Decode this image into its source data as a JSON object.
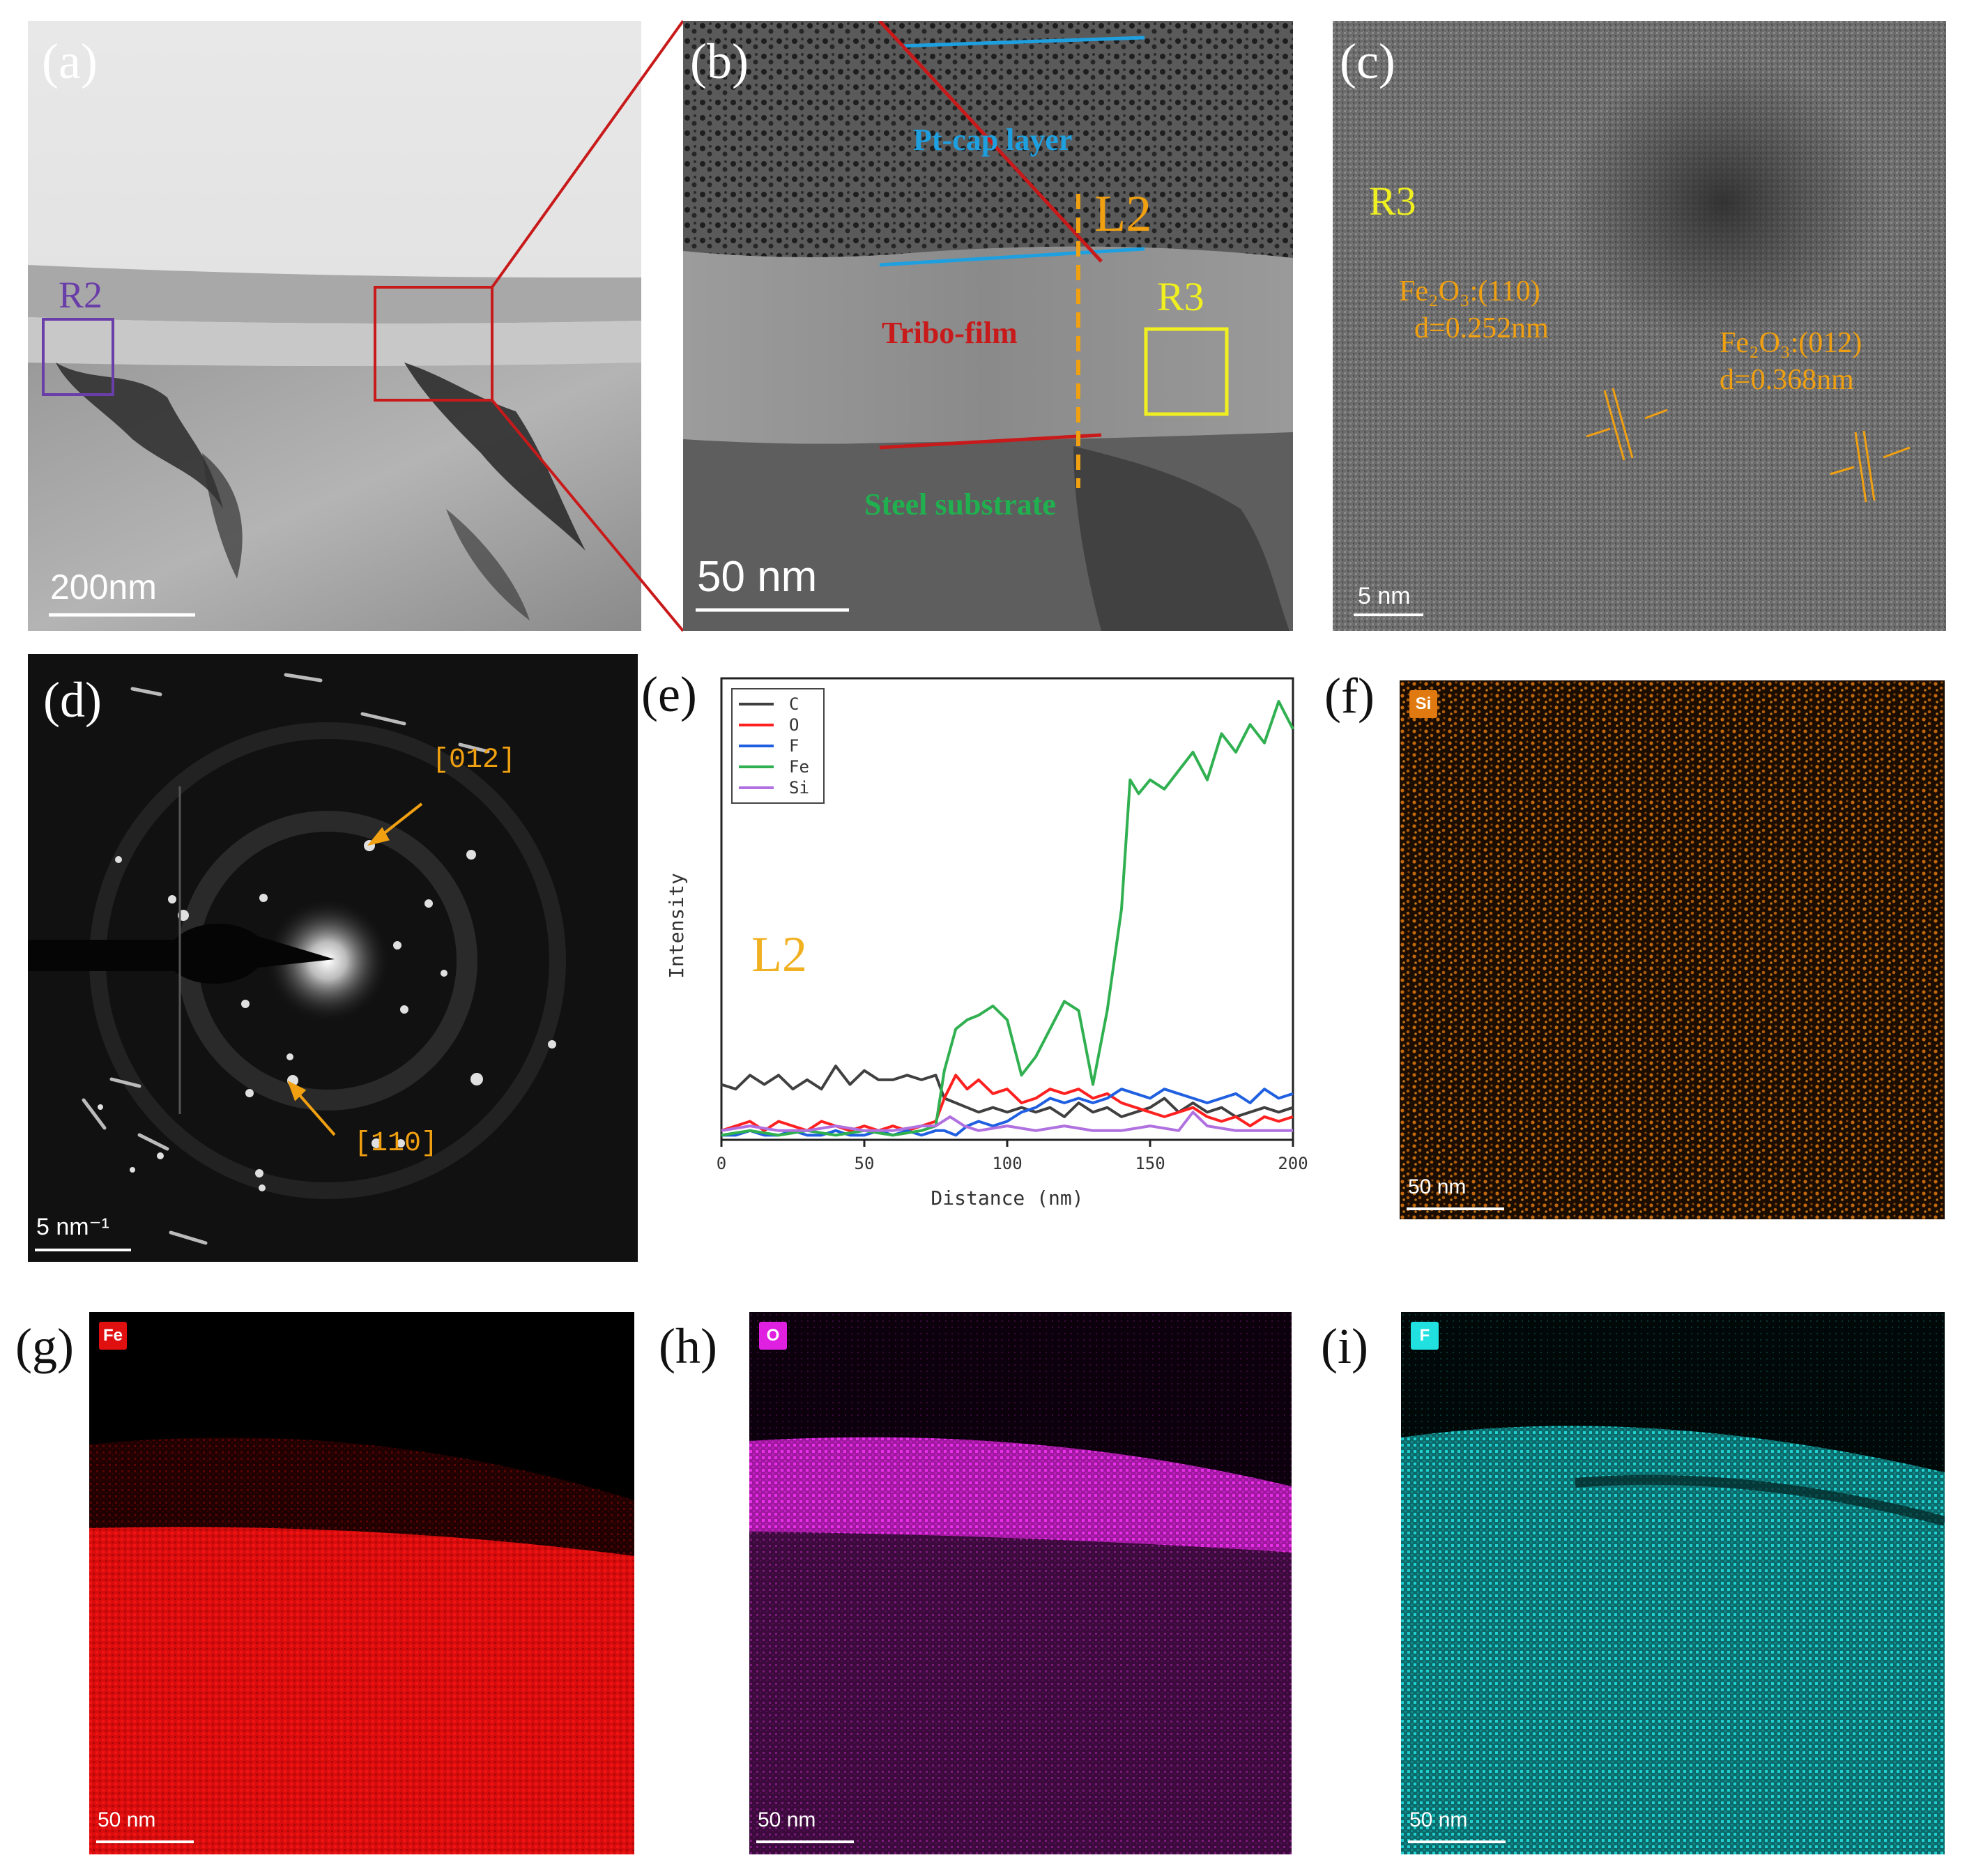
{
  "panels": {
    "a": {
      "label": "(a)",
      "region": "R2",
      "scalebar": "200nm"
    },
    "b": {
      "label": "(b)",
      "cap_layer": "Pt-cap layer",
      "film": "Tribo-film",
      "substrate": "Steel substrate",
      "line_label": "L2",
      "region": "R3",
      "scalebar": "50 nm"
    },
    "c": {
      "label": "(c)",
      "region": "R3",
      "phase1_formula": "Fe₂O₃",
      "phase1_plane": ":(110)",
      "phase1_d": "d=0.252nm",
      "phase2_formula": "Fe₂O₃",
      "phase2_plane": ":(012)",
      "phase2_d": "d=0.368nm",
      "scalebar": "5 nm"
    },
    "d": {
      "label": "(d)",
      "spot1": "[012]",
      "spot2": "[110]",
      "scalebar": "5 nm⁻¹"
    },
    "e": {
      "label": "(e)"
    },
    "f": {
      "label": "(f)",
      "element": "Si",
      "scalebar": "50 nm",
      "color": "#e07a10"
    },
    "g": {
      "label": "(g)",
      "element": "Fe",
      "scalebar": "50 nm",
      "color": "#ff1a1a"
    },
    "h": {
      "label": "(h)",
      "element": "O",
      "scalebar": "50 nm",
      "color": "#e020e0"
    },
    "i": {
      "label": "(i)",
      "element": "F",
      "scalebar": "50 nm",
      "color": "#20e0e0"
    }
  },
  "chart_data": {
    "type": "line",
    "annotation": "L2",
    "xlabel": "Distance (nm)",
    "ylabel": "Intensity",
    "xlim": [
      0,
      200
    ],
    "ylim": [
      0,
      1
    ],
    "xticks": [
      0,
      50,
      100,
      150,
      200
    ],
    "legend_position": "top-left",
    "series": [
      {
        "name": "C",
        "color": "#404040",
        "x": [
          0,
          5,
          10,
          15,
          20,
          25,
          30,
          35,
          40,
          45,
          50,
          55,
          60,
          65,
          70,
          75,
          78,
          82,
          86,
          90,
          95,
          100,
          105,
          110,
          115,
          120,
          125,
          130,
          135,
          140,
          145,
          150,
          155,
          160,
          165,
          170,
          175,
          180,
          185,
          190,
          195,
          200
        ],
        "y": [
          0.12,
          0.11,
          0.14,
          0.12,
          0.14,
          0.11,
          0.13,
          0.11,
          0.16,
          0.12,
          0.15,
          0.13,
          0.13,
          0.14,
          0.13,
          0.14,
          0.09,
          0.08,
          0.07,
          0.06,
          0.07,
          0.06,
          0.07,
          0.06,
          0.07,
          0.05,
          0.08,
          0.06,
          0.07,
          0.05,
          0.06,
          0.07,
          0.09,
          0.06,
          0.08,
          0.06,
          0.07,
          0.05,
          0.06,
          0.07,
          0.06,
          0.07
        ]
      },
      {
        "name": "O",
        "color": "#ff2020",
        "x": [
          0,
          5,
          10,
          15,
          20,
          25,
          30,
          35,
          40,
          45,
          50,
          55,
          60,
          65,
          70,
          75,
          78,
          82,
          86,
          90,
          95,
          100,
          105,
          110,
          115,
          120,
          125,
          130,
          135,
          140,
          145,
          150,
          155,
          160,
          165,
          170,
          175,
          180,
          185,
          190,
          195,
          200
        ],
        "y": [
          0.02,
          0.03,
          0.04,
          0.02,
          0.04,
          0.03,
          0.02,
          0.04,
          0.03,
          0.02,
          0.03,
          0.02,
          0.03,
          0.02,
          0.03,
          0.04,
          0.09,
          0.14,
          0.11,
          0.13,
          0.1,
          0.11,
          0.08,
          0.09,
          0.11,
          0.1,
          0.11,
          0.09,
          0.1,
          0.08,
          0.07,
          0.06,
          0.05,
          0.06,
          0.07,
          0.05,
          0.04,
          0.05,
          0.03,
          0.05,
          0.04,
          0.05
        ]
      },
      {
        "name": "F",
        "color": "#2060e0",
        "x": [
          0,
          5,
          10,
          15,
          20,
          25,
          30,
          35,
          40,
          45,
          50,
          55,
          60,
          65,
          70,
          75,
          78,
          82,
          86,
          90,
          95,
          100,
          105,
          110,
          115,
          120,
          125,
          130,
          135,
          140,
          145,
          150,
          155,
          160,
          165,
          170,
          175,
          180,
          185,
          190,
          195,
          200
        ],
        "y": [
          0.01,
          0.01,
          0.02,
          0.01,
          0.01,
          0.02,
          0.01,
          0.01,
          0.02,
          0.01,
          0.01,
          0.02,
          0.01,
          0.02,
          0.01,
          0.02,
          0.02,
          0.01,
          0.03,
          0.04,
          0.03,
          0.04,
          0.06,
          0.07,
          0.09,
          0.08,
          0.09,
          0.08,
          0.09,
          0.11,
          0.1,
          0.09,
          0.11,
          0.1,
          0.09,
          0.08,
          0.09,
          0.1,
          0.08,
          0.11,
          0.09,
          0.1
        ]
      },
      {
        "name": "Fe",
        "color": "#30b050",
        "x": [
          0,
          10,
          20,
          30,
          40,
          50,
          60,
          70,
          75,
          78,
          82,
          86,
          90,
          95,
          100,
          105,
          110,
          115,
          120,
          125,
          130,
          135,
          140,
          143,
          146,
          150,
          155,
          160,
          165,
          170,
          175,
          180,
          185,
          190,
          195,
          200
        ],
        "y": [
          0.01,
          0.02,
          0.01,
          0.02,
          0.01,
          0.02,
          0.01,
          0.02,
          0.03,
          0.15,
          0.24,
          0.26,
          0.27,
          0.29,
          0.26,
          0.14,
          0.18,
          0.24,
          0.3,
          0.28,
          0.12,
          0.28,
          0.5,
          0.78,
          0.75,
          0.78,
          0.76,
          0.8,
          0.84,
          0.78,
          0.88,
          0.84,
          0.9,
          0.86,
          0.95,
          0.89
        ]
      },
      {
        "name": "Si",
        "color": "#b070e0",
        "x": [
          0,
          10,
          20,
          30,
          40,
          50,
          60,
          70,
          75,
          80,
          85,
          90,
          100,
          110,
          120,
          130,
          140,
          150,
          160,
          165,
          170,
          180,
          190,
          200
        ],
        "y": [
          0.02,
          0.03,
          0.02,
          0.02,
          0.03,
          0.02,
          0.02,
          0.03,
          0.03,
          0.05,
          0.03,
          0.02,
          0.03,
          0.02,
          0.03,
          0.02,
          0.02,
          0.03,
          0.02,
          0.06,
          0.03,
          0.02,
          0.02,
          0.02
        ]
      }
    ]
  }
}
